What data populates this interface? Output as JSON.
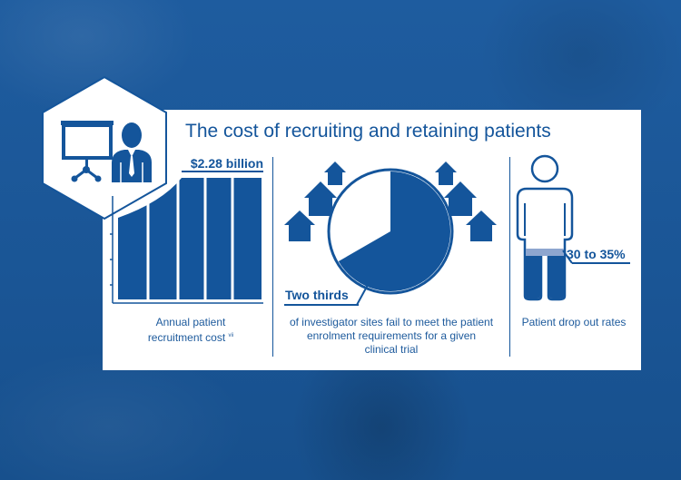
{
  "title": "The cost of recruiting and retaining patients",
  "stats": {
    "recruitment": {
      "value": "$2.28 billion",
      "caption_line1": "Annual patient",
      "caption_line2": "recruitment cost",
      "footnote": "vii"
    },
    "sites": {
      "value": "Two thirds",
      "fraction": 0.6667,
      "caption_line1": "of investigator sites fail to meet the patient",
      "caption_line2": "enrolment requirements for a given",
      "caption_line3": "clinical trial"
    },
    "dropout": {
      "value": "30 to 35%",
      "caption": "Patient drop out rates"
    }
  },
  "icons": {
    "presenter": "presentation-board-person-icon",
    "houses": "house-arrows-icon",
    "person": "person-outline-icon"
  },
  "colors": {
    "brand_blue": "#14559b",
    "background_blue": "#1d5a9c",
    "light_band": "#8ea6cf",
    "card": "#ffffff"
  }
}
